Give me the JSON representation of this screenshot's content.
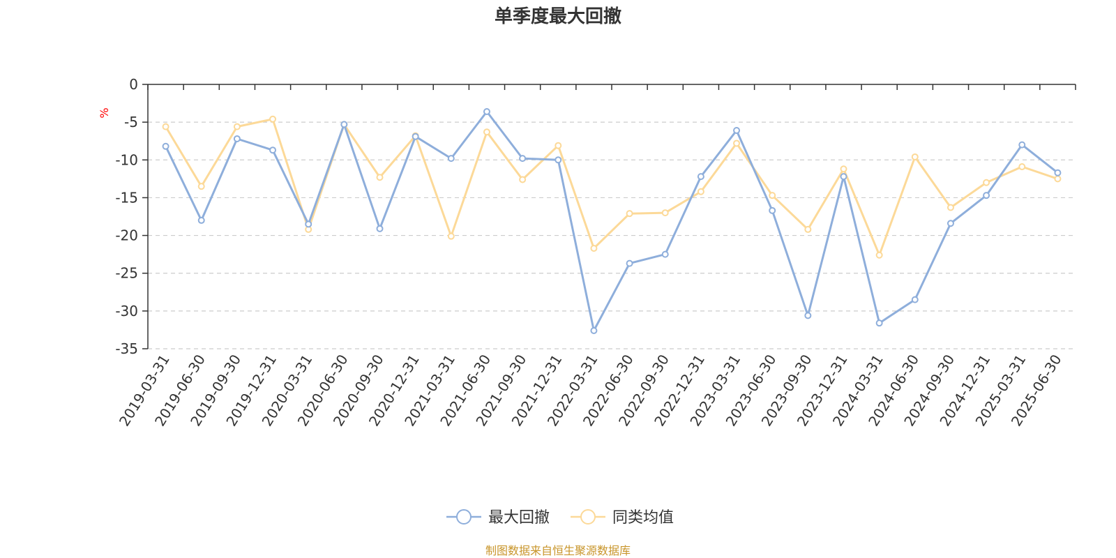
{
  "chart_data": {
    "type": "line",
    "title": "单季度最大回撤",
    "ylabel": "%",
    "ylim": [
      -35,
      0
    ],
    "yticks": [
      0,
      -5,
      -10,
      -15,
      -20,
      -25,
      -30,
      -35
    ],
    "grid": "dashed horizontal",
    "legend_position": "bottom-center",
    "categories": [
      "2019-03-31",
      "2019-06-30",
      "2019-09-30",
      "2019-12-31",
      "2020-03-31",
      "2020-06-30",
      "2020-09-30",
      "2020-12-31",
      "2021-03-31",
      "2021-06-30",
      "2021-09-30",
      "2021-12-31",
      "2022-03-31",
      "2022-06-30",
      "2022-09-30",
      "2022-12-31",
      "2023-03-31",
      "2023-06-30",
      "2023-09-30",
      "2023-12-31",
      "2024-03-31",
      "2024-06-30",
      "2024-09-30",
      "2024-12-31",
      "2025-03-31",
      "2025-06-30"
    ],
    "series": [
      {
        "name": "最大回撤",
        "color": "#8eaedb",
        "values": [
          -8.2,
          -18.0,
          -7.2,
          -8.7,
          -18.5,
          -5.3,
          -19.1,
          -6.9,
          -9.8,
          -3.6,
          -9.8,
          -10.0,
          -32.6,
          -23.7,
          -22.5,
          -12.2,
          -6.1,
          -16.7,
          -30.6,
          -12.2,
          -31.6,
          -28.5,
          -18.4,
          -14.7,
          -8.0,
          -11.7
        ]
      },
      {
        "name": "同类均值",
        "color": "#fcd998",
        "values": [
          -5.6,
          -13.5,
          -5.6,
          -4.6,
          -19.2,
          -5.3,
          -12.3,
          -6.8,
          -20.1,
          -6.3,
          -12.6,
          -8.1,
          -21.7,
          -17.1,
          -17.0,
          -14.2,
          -7.8,
          -14.7,
          -19.2,
          -11.2,
          -22.6,
          -9.6,
          -16.3,
          -13.0,
          -10.9,
          -12.5
        ]
      }
    ],
    "source": "制图数据来自恒生聚源数据库"
  }
}
